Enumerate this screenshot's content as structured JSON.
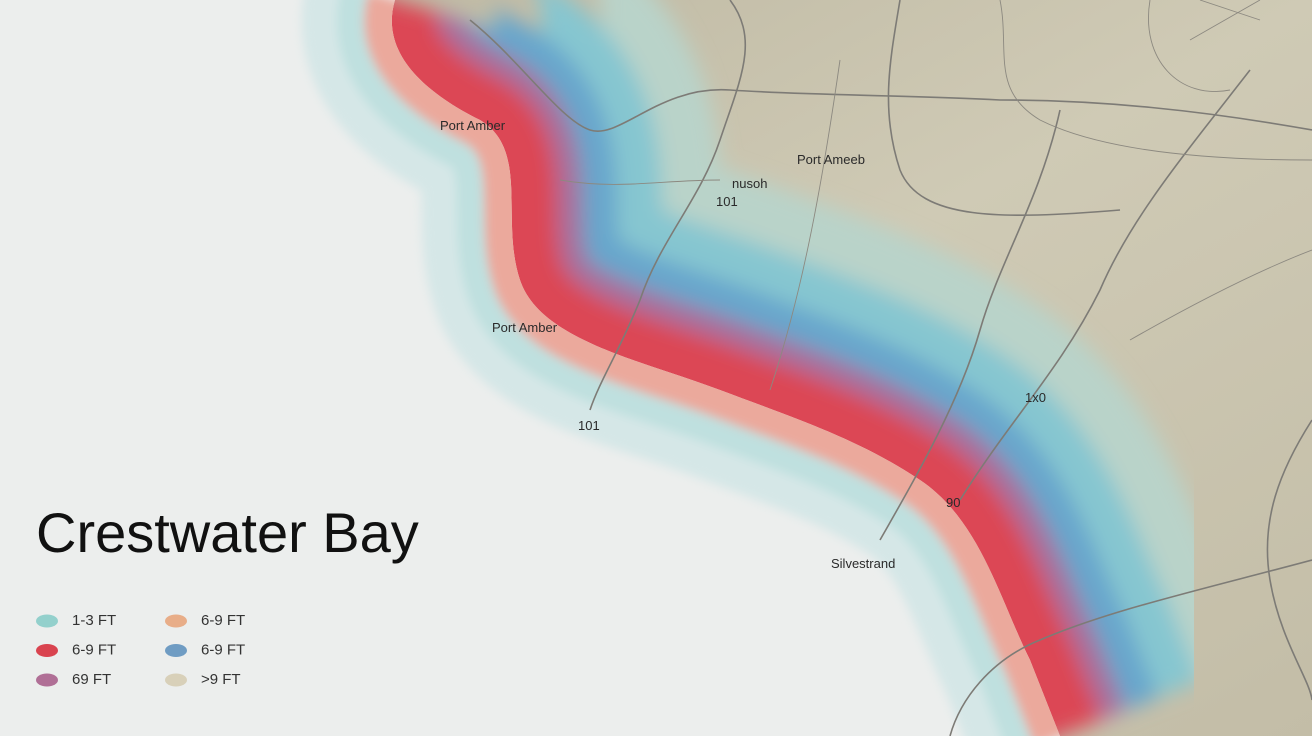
{
  "title": "Crestwater Bay",
  "place_labels": [
    "Port Amber",
    "Port Ameeb",
    "nusoh",
    "101",
    "Port Amber",
    "101",
    "1x0",
    "90",
    "Silvestrand"
  ],
  "legend": [
    {
      "label": "1-3 FT",
      "color": "#93d0cc"
    },
    {
      "label": "6-9 FT",
      "color": "#e8ad88"
    },
    {
      "label": "6-9 FT",
      "color": "#d9434f"
    },
    {
      "label": "6-9 FT",
      "color": "#6f9cc3"
    },
    {
      "label": "69 FT",
      "color": "#b06f96"
    },
    {
      "label": ">9 FT",
      "color": "#d8d0b9"
    }
  ]
}
